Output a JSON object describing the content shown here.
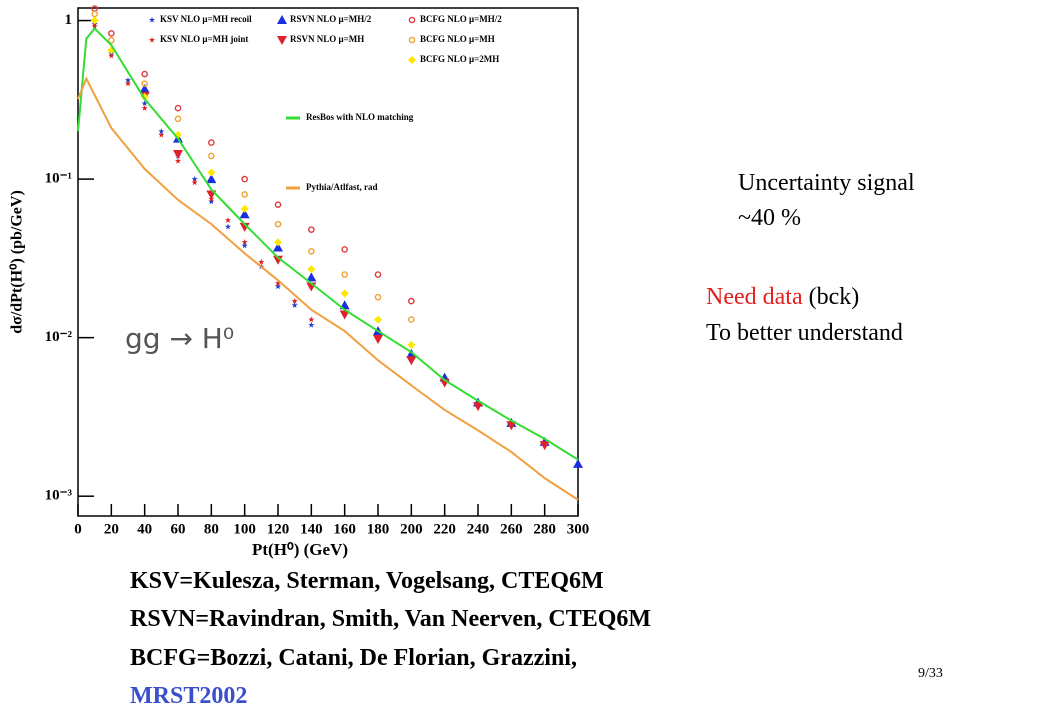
{
  "chart_data": {
    "type": "scatter",
    "xlabel": "Pt(H⁰) (GeV)",
    "ylabel": "dσ/dPt(H⁰) (pb/GeV)",
    "annotation": "gg → H⁰",
    "log_y": true,
    "xlim": [
      0,
      300
    ],
    "ylim": [
      0.00075,
      1.2
    ],
    "xticks": [
      0,
      20,
      40,
      60,
      80,
      100,
      120,
      140,
      160,
      180,
      200,
      220,
      240,
      260,
      280,
      300
    ],
    "yticks": [
      {
        "value": 1,
        "label": "1"
      },
      {
        "value": 0.1,
        "label": "10⁻¹"
      },
      {
        "value": 0.01,
        "label": "10⁻²"
      },
      {
        "value": 0.001,
        "label": "10⁻³"
      }
    ],
    "series": [
      {
        "name": "KSV NLO μ=MH recoil",
        "color": "#1f3fd0",
        "marker": "star",
        "x": [
          10,
          20,
          30,
          40,
          50,
          60,
          70,
          80,
          90,
          100,
          110,
          120,
          130,
          140
        ],
        "values": [
          0.95,
          0.62,
          0.42,
          0.3,
          0.2,
          0.14,
          0.1,
          0.072,
          0.05,
          0.038,
          0.028,
          0.021,
          0.016,
          0.012
        ]
      },
      {
        "name": "KSV NLO μ=MH joint",
        "color": "#e02020",
        "marker": "star",
        "x": [
          10,
          20,
          30,
          40,
          50,
          60,
          70,
          80,
          90,
          100,
          110,
          120,
          130,
          140
        ],
        "values": [
          0.92,
          0.6,
          0.4,
          0.28,
          0.19,
          0.13,
          0.095,
          0.075,
          0.055,
          0.04,
          0.03,
          0.022,
          0.017,
          0.013
        ]
      },
      {
        "name": "RSVN NLO μ=MH/2",
        "color": "#1a2fe0",
        "marker": "triangle-up",
        "x": [
          40,
          60,
          80,
          100,
          120,
          140,
          160,
          180,
          200,
          220,
          240,
          260,
          280,
          300
        ],
        "values": [
          0.37,
          0.18,
          0.1,
          0.06,
          0.037,
          0.024,
          0.016,
          0.011,
          0.0079,
          0.0056,
          0.0039,
          0.0029,
          0.0022,
          0.0016
        ]
      },
      {
        "name": "RSVN NLO μ=MH",
        "color": "#e0202a",
        "marker": "triangle-down",
        "x": [
          40,
          60,
          80,
          100,
          120,
          140,
          160,
          180,
          200,
          220,
          240,
          260,
          280
        ],
        "values": [
          0.335,
          0.144,
          0.08,
          0.05,
          0.031,
          0.021,
          0.014,
          0.0098,
          0.0072,
          0.0052,
          0.0037,
          0.0028,
          0.0021
        ]
      },
      {
        "name": "BCFG NLO μ=MH/2",
        "color": "#e03a3a",
        "marker": "circle",
        "x": [
          10,
          20,
          40,
          60,
          80,
          100,
          120,
          140,
          160,
          180,
          200
        ],
        "values": [
          1.19,
          0.83,
          0.46,
          0.28,
          0.17,
          0.1,
          0.069,
          0.048,
          0.036,
          0.025,
          0.017
        ]
      },
      {
        "name": "BCFG NLO μ=MH",
        "color": "#f0a030",
        "marker": "circle",
        "x": [
          10,
          20,
          40,
          60,
          80,
          100,
          120,
          140,
          160,
          180,
          200
        ],
        "values": [
          1.1,
          0.75,
          0.4,
          0.24,
          0.14,
          0.08,
          0.052,
          0.035,
          0.025,
          0.018,
          0.013
        ]
      },
      {
        "name": "BCFG NLO μ=2MH",
        "color": "#ffe600",
        "marker": "diamond",
        "x": [
          10,
          20,
          40,
          60,
          80,
          100,
          120,
          140,
          160,
          180,
          200
        ],
        "values": [
          1.0,
          0.65,
          0.33,
          0.19,
          0.11,
          0.065,
          0.04,
          0.027,
          0.019,
          0.013,
          0.009
        ]
      },
      {
        "name": "ResBos with NLO matching",
        "color": "#33dd33",
        "marker": "line",
        "x": [
          0,
          5,
          10,
          20,
          40,
          60,
          80,
          100,
          120,
          140,
          160,
          180,
          200,
          220,
          240,
          260,
          280,
          300
        ],
        "values": [
          0.2,
          0.77,
          0.89,
          0.7,
          0.32,
          0.18,
          0.086,
          0.052,
          0.032,
          0.022,
          0.015,
          0.011,
          0.0081,
          0.0054,
          0.004,
          0.003,
          0.0023,
          0.0017
        ]
      },
      {
        "name": "Pythia/Atlfast, rad",
        "color": "#f0a040",
        "marker": "line",
        "x": [
          0,
          5,
          20,
          40,
          60,
          80,
          100,
          120,
          140,
          160,
          180,
          200,
          220,
          240,
          260,
          280,
          300
        ],
        "values": [
          0.32,
          0.43,
          0.21,
          0.116,
          0.074,
          0.052,
          0.034,
          0.023,
          0.015,
          0.011,
          0.0072,
          0.005,
          0.0035,
          0.0026,
          0.0019,
          0.0013,
          0.00095
        ]
      }
    ]
  },
  "notes": {
    "uncertainty": "Uncertainty signal",
    "uncertainty_value": "~40 %",
    "need_data": "Need data",
    "need_data_rest": " (bck)",
    "understand": "To better understand"
  },
  "credits": {
    "ksv": "KSV=Kulesza, Sterman, Vogelsang, CTEQ6M",
    "rsvn": "RSVN=Ravindran, Smith, Van Neerven, CTEQ6M",
    "bcfg": "BCFG=Bozzi, Catani, De Florian, Grazzini,",
    "mrst": "MRST2002"
  },
  "page_number": "9/33"
}
